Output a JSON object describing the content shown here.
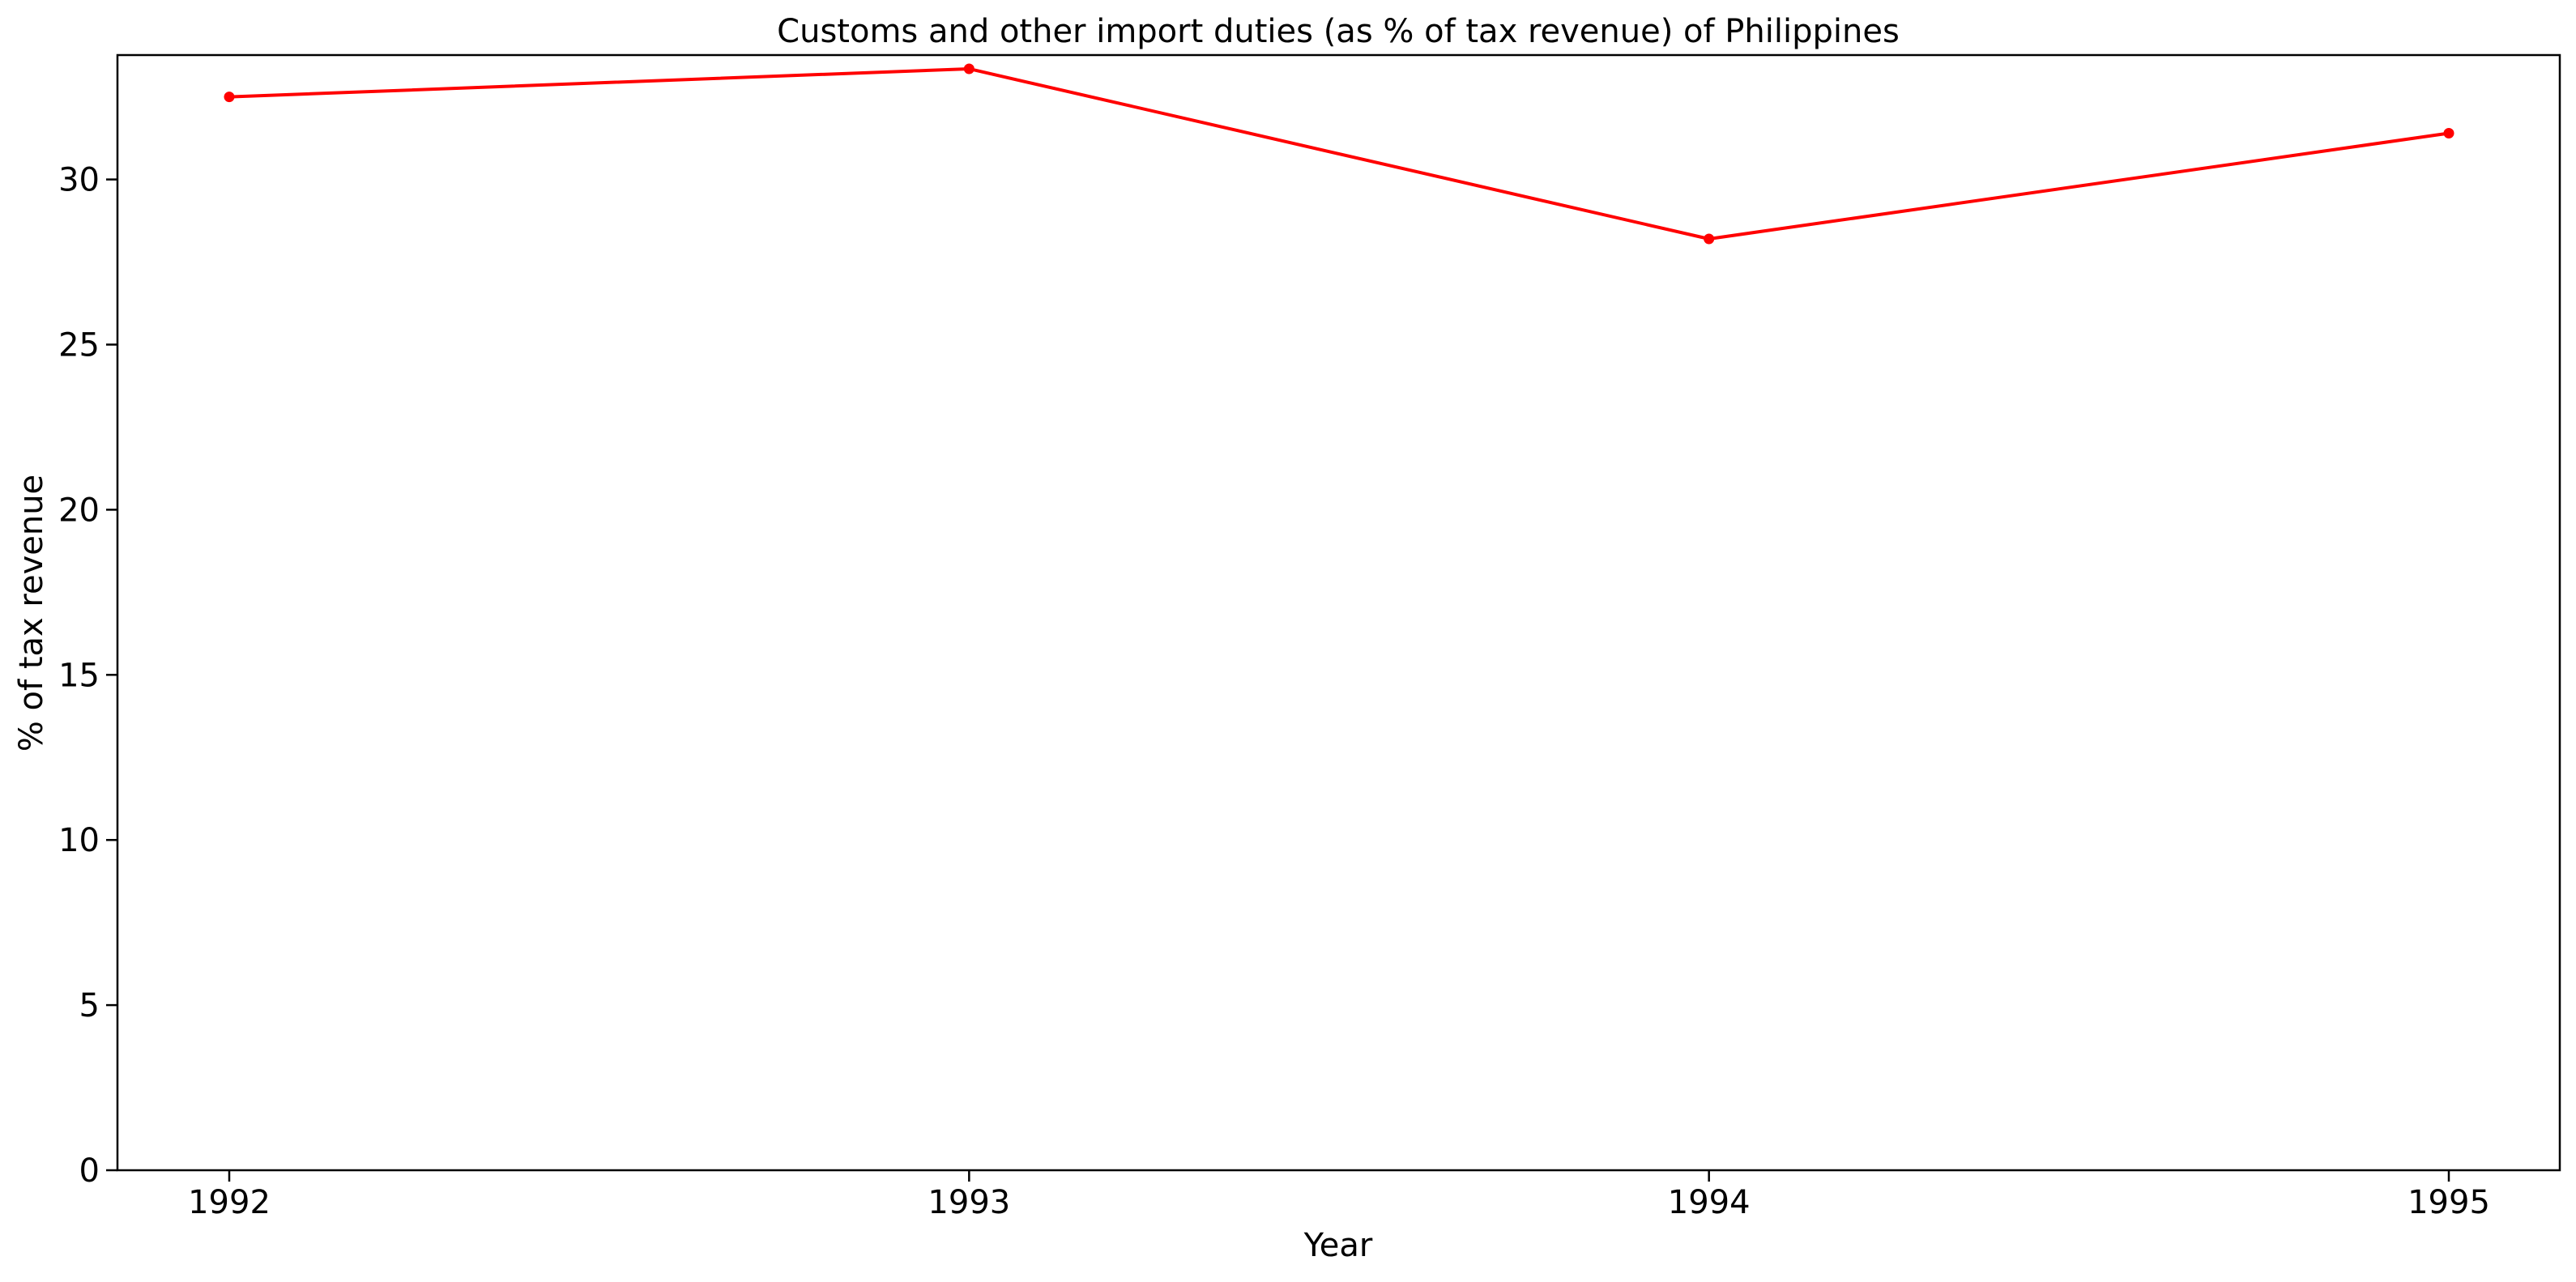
{
  "chart_data": {
    "type": "line",
    "title": "Customs and other import duties (as % of tax revenue) of Philippines",
    "xlabel": "Year",
    "ylabel": "% of tax revenue",
    "x": [
      "1992",
      "1993",
      "1994",
      "1995"
    ],
    "series": [
      {
        "name": "",
        "color": "#ff0000",
        "values": [
          32.5,
          33.35,
          28.2,
          31.4
        ]
      }
    ],
    "ylim": [
      0,
      33.35
    ],
    "yticks": [
      0,
      5,
      10,
      15,
      20,
      25,
      30
    ],
    "grid": false,
    "legend": "none"
  }
}
